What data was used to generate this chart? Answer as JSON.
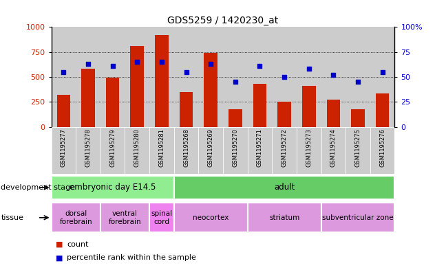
{
  "title": "GDS5259 / 1420230_at",
  "samples": [
    "GSM1195277",
    "GSM1195278",
    "GSM1195279",
    "GSM1195280",
    "GSM1195281",
    "GSM1195268",
    "GSM1195269",
    "GSM1195270",
    "GSM1195271",
    "GSM1195272",
    "GSM1195273",
    "GSM1195274",
    "GSM1195275",
    "GSM1195276"
  ],
  "counts": [
    320,
    580,
    490,
    810,
    920,
    350,
    740,
    175,
    430,
    250,
    410,
    270,
    175,
    335
  ],
  "percentiles": [
    55,
    63,
    61,
    65,
    65,
    55,
    63,
    45,
    61,
    50,
    58,
    52,
    45,
    55
  ],
  "dev_stage_groups": [
    {
      "label": "embryonic day E14.5",
      "start": 0,
      "end": 5,
      "color": "#90EE90"
    },
    {
      "label": "adult",
      "start": 5,
      "end": 14,
      "color": "#66CC66"
    }
  ],
  "tissue_groups": [
    {
      "label": "dorsal\nforebrain",
      "start": 0,
      "end": 2,
      "color": "#DD99DD"
    },
    {
      "label": "ventral\nforebrain",
      "start": 2,
      "end": 4,
      "color": "#DD99DD"
    },
    {
      "label": "spinal\ncord",
      "start": 4,
      "end": 5,
      "color": "#EE82EE"
    },
    {
      "label": "neocortex",
      "start": 5,
      "end": 8,
      "color": "#DD99DD"
    },
    {
      "label": "striatum",
      "start": 8,
      "end": 11,
      "color": "#DD99DD"
    },
    {
      "label": "subventricular zone",
      "start": 11,
      "end": 14,
      "color": "#DD99DD"
    }
  ],
  "bar_color": "#CC2200",
  "dot_color": "#0000CC",
  "ylim_left": [
    0,
    1000
  ],
  "ylim_right": [
    0,
    100
  ],
  "yticks_left": [
    0,
    250,
    500,
    750,
    1000
  ],
  "yticks_right": [
    0,
    25,
    50,
    75,
    100
  ],
  "col_bg_color": "#CCCCCC",
  "white": "#FFFFFF"
}
